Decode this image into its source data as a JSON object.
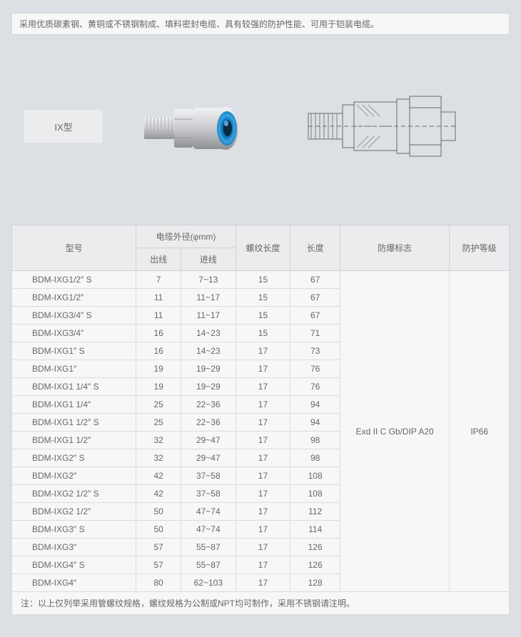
{
  "description": "采用优质碳素钢、黄铜或不锈钢制成、填料密封电缆、具有较强的防护性能、可用于铠装电缆。",
  "model_badge": "IX型",
  "photo": {
    "body_color": "#c9cace",
    "body_highlight": "#f1f2f4",
    "body_shadow": "#8e9094",
    "ring_outer": "#0b6fb8",
    "ring_inner": "#3aa6e0",
    "ring_center": "#0d2a40"
  },
  "drawing": {
    "stroke": "#6a6a6a",
    "width": 1
  },
  "table": {
    "headers": {
      "model": "型号",
      "cable_od": "电缆外径(φmm)",
      "out": "出线",
      "in": "进线",
      "thread_len": "螺纹长度",
      "length": "长度",
      "explosion": "防爆标志",
      "protection": "防护等级"
    },
    "rows": [
      {
        "model": "BDM-IXG1/2″ S",
        "out": "7",
        "in": "7~13",
        "thread": "15",
        "len": "67"
      },
      {
        "model": "BDM-IXG1/2″",
        "out": "11",
        "in": "11~17",
        "thread": "15",
        "len": "67"
      },
      {
        "model": "BDM-IXG3/4″ S",
        "out": "11",
        "in": "11~17",
        "thread": "15",
        "len": "67"
      },
      {
        "model": "BDM-IXG3/4″",
        "out": "16",
        "in": "14~23",
        "thread": "15",
        "len": "71"
      },
      {
        "model": "BDM-IXG1″ S",
        "out": "16",
        "in": "14~23",
        "thread": "17",
        "len": "73"
      },
      {
        "model": "BDM-IXG1″",
        "out": "19",
        "in": "19~29",
        "thread": "17",
        "len": "76"
      },
      {
        "model": "BDM-IXG1 1/4″ S",
        "out": "19",
        "in": "19~29",
        "thread": "17",
        "len": "76"
      },
      {
        "model": "BDM-IXG1 1/4″",
        "out": "25",
        "in": "22~36",
        "thread": "17",
        "len": "94"
      },
      {
        "model": "BDM-IXG1 1/2″ S",
        "out": "25",
        "in": "22~36",
        "thread": "17",
        "len": "94"
      },
      {
        "model": "BDM-IXG1 1/2″",
        "out": "32",
        "in": "29~47",
        "thread": "17",
        "len": "98"
      },
      {
        "model": "BDM-IXG2″ S",
        "out": "32",
        "in": "29~47",
        "thread": "17",
        "len": "98"
      },
      {
        "model": "BDM-IXG2″",
        "out": "42",
        "in": "37~58",
        "thread": "17",
        "len": "108"
      },
      {
        "model": "BDM-IXG2 1/2″ S",
        "out": "42",
        "in": "37~58",
        "thread": "17",
        "len": "108"
      },
      {
        "model": "BDM-IXG2 1/2″",
        "out": "50",
        "in": "47~74",
        "thread": "17",
        "len": "112"
      },
      {
        "model": "BDM-IXG3″ S",
        "out": "50",
        "in": "47~74",
        "thread": "17",
        "len": "114"
      },
      {
        "model": "BDM-IXG3″",
        "out": "57",
        "in": "55~87",
        "thread": "17",
        "len": "126"
      },
      {
        "model": "BDM-IXG4″ S",
        "out": "57",
        "in": "55~87",
        "thread": "17",
        "len": "126"
      },
      {
        "model": "BDM-IXG4″",
        "out": "80",
        "in": "62~103",
        "thread": "17",
        "len": "128"
      }
    ],
    "explosion_value": "Exd II C Gb/DIP A20",
    "protection_value": "IP66",
    "col_widths": {
      "model": "25%",
      "out": "9%",
      "in": "11%",
      "thread": "11%",
      "len": "10%",
      "explosion": "22%",
      "protection": "12%"
    }
  },
  "footnote": "注：以上仅列举采用管螺纹规格，螺纹规格为公制或NPT均可制作，采用不锈钢请注明。"
}
